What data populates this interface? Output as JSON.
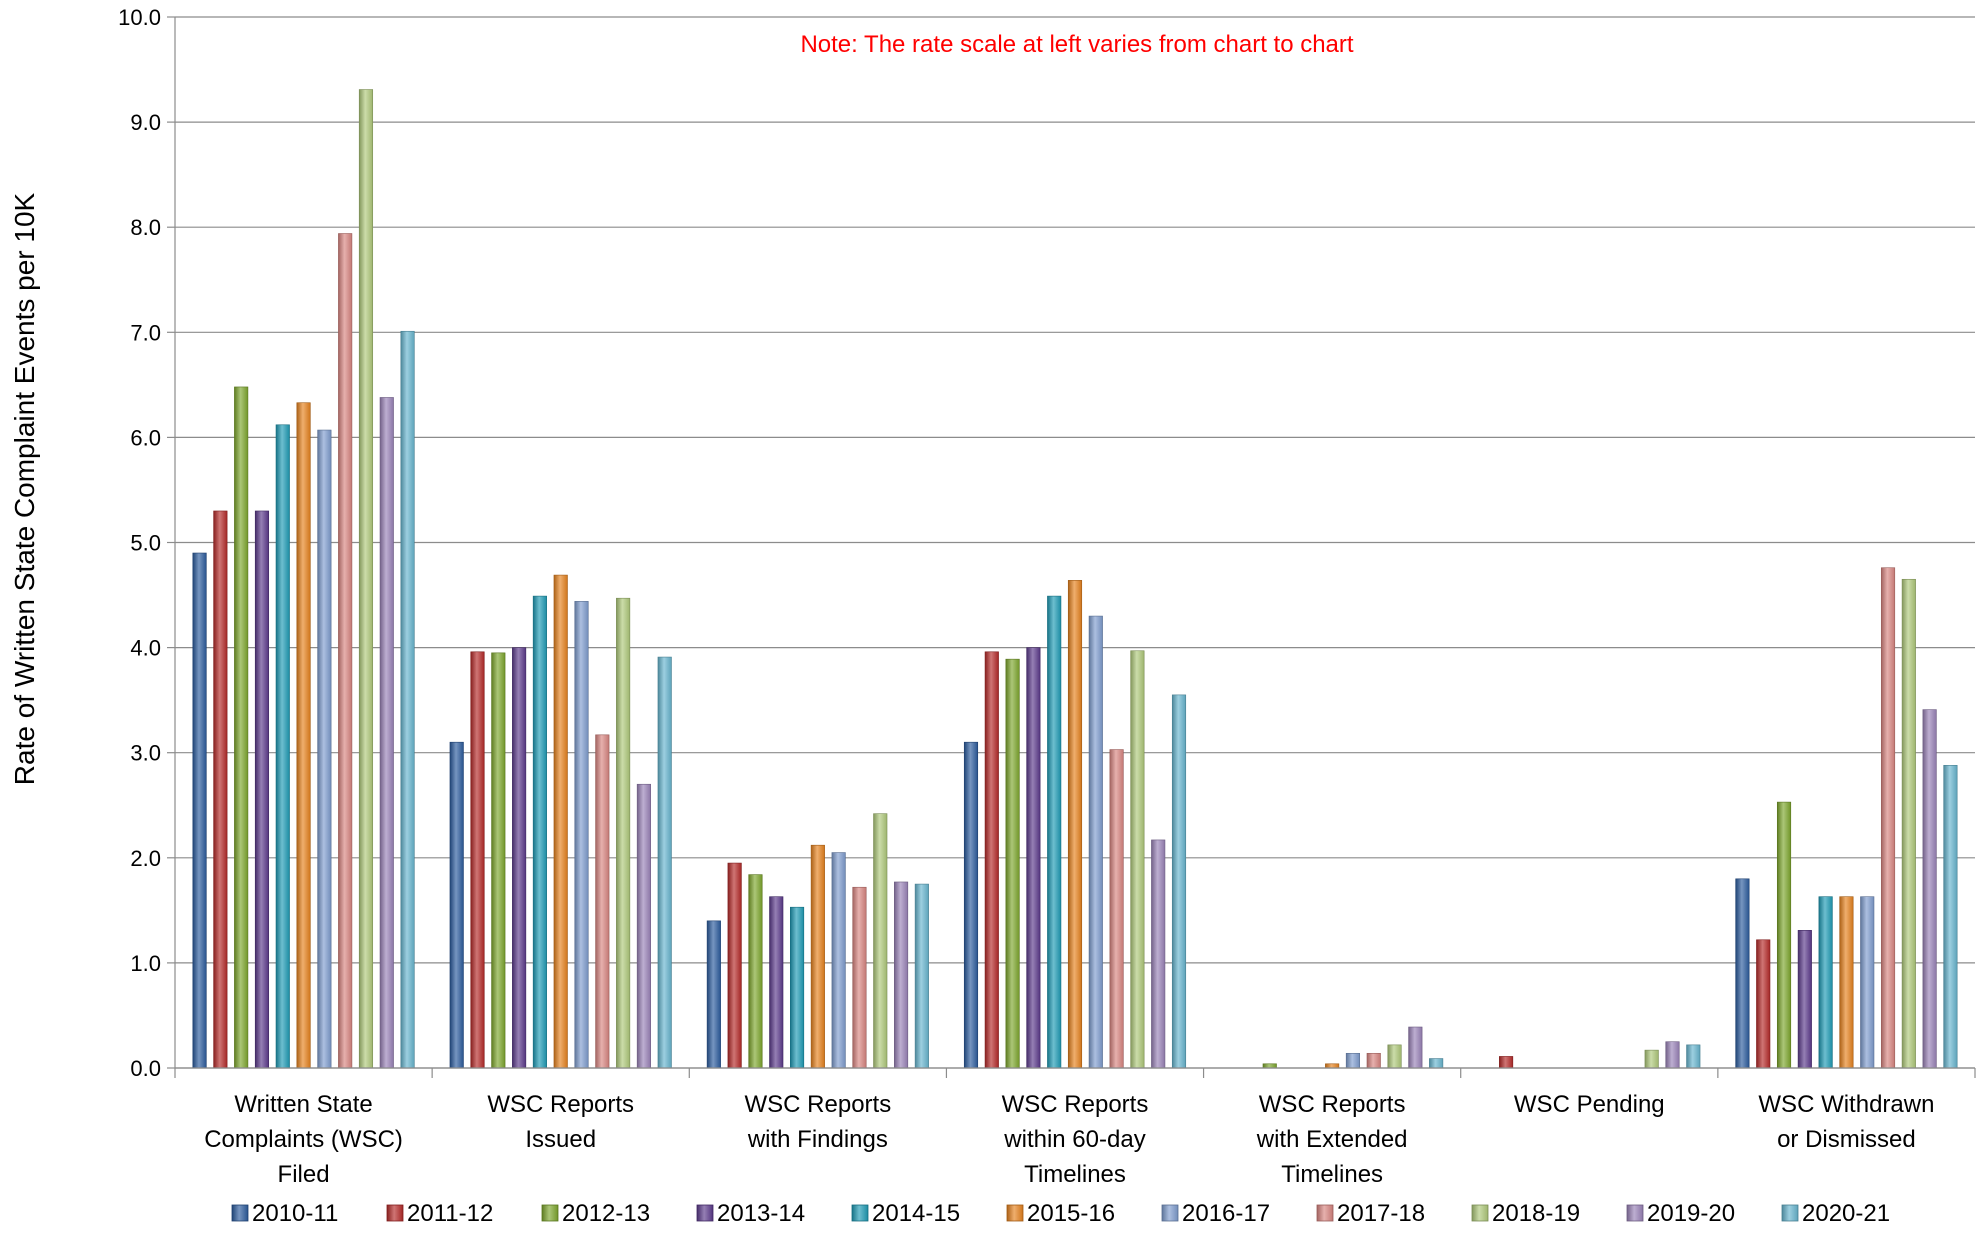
{
  "chart_data": {
    "type": "bar",
    "title": "",
    "note": "Note:  The rate scale at left varies from chart to chart",
    "note_color": "#ff0000",
    "xlabel": "",
    "ylabel": "Rate of Written State Complaint Events per 10K",
    "ylim": [
      0,
      10
    ],
    "yticks": [
      "0.0",
      "1.0",
      "2.0",
      "3.0",
      "4.0",
      "5.0",
      "6.0",
      "7.0",
      "8.0",
      "9.0",
      "10.0"
    ],
    "grid": true,
    "legend_position": "bottom",
    "categories": [
      [
        "Written State",
        "Complaints (WSC)",
        "Filed"
      ],
      [
        "WSC Reports",
        "Issued"
      ],
      [
        "WSC Reports",
        "with Findings"
      ],
      [
        "WSC Reports",
        "within 60-day",
        "Timelines"
      ],
      [
        "WSC Reports",
        "with Extended",
        "Timelines"
      ],
      [
        "WSC Pending"
      ],
      [
        "WSC Withdrawn",
        "or Dismissed"
      ]
    ],
    "series": [
      {
        "name": "2010-11",
        "color": "#2c5c9e",
        "values": [
          4.9,
          3.1,
          1.4,
          3.1,
          0.0,
          0.0,
          1.8
        ]
      },
      {
        "name": "2011-12",
        "color": "#b52a29",
        "values": [
          5.3,
          3.96,
          1.95,
          3.96,
          0.0,
          0.11,
          1.22
        ]
      },
      {
        "name": "2012-13",
        "color": "#7ea72d",
        "values": [
          6.48,
          3.95,
          1.84,
          3.89,
          0.04,
          0.0,
          2.53
        ]
      },
      {
        "name": "2013-14",
        "color": "#5c3a8c",
        "values": [
          5.3,
          4.0,
          1.63,
          4.0,
          0.0,
          0.0,
          1.31
        ]
      },
      {
        "name": "2014-15",
        "color": "#1f9bb5",
        "values": [
          6.12,
          4.49,
          1.53,
          4.49,
          0.0,
          0.0,
          1.63
        ]
      },
      {
        "name": "2015-16",
        "color": "#e6821e",
        "values": [
          6.33,
          4.69,
          2.12,
          4.64,
          0.04,
          0.0,
          1.63
        ]
      },
      {
        "name": "2016-17",
        "color": "#7f9dcf",
        "values": [
          6.07,
          4.44,
          2.05,
          4.3,
          0.14,
          0.0,
          1.63
        ]
      },
      {
        "name": "2017-18",
        "color": "#d98581",
        "values": [
          7.94,
          3.17,
          1.72,
          3.03,
          0.14,
          0.0,
          4.76
        ]
      },
      {
        "name": "2018-19",
        "color": "#afc97a",
        "values": [
          9.31,
          4.47,
          2.42,
          3.97,
          0.22,
          0.17,
          4.65
        ]
      },
      {
        "name": "2019-20",
        "color": "#9a83b8",
        "values": [
          6.38,
          2.7,
          1.77,
          2.17,
          0.39,
          0.25,
          3.41
        ]
      },
      {
        "name": "2020-21",
        "color": "#67b5cf",
        "values": [
          7.01,
          3.91,
          1.75,
          3.55,
          0.09,
          0.22,
          2.88
        ]
      }
    ]
  }
}
